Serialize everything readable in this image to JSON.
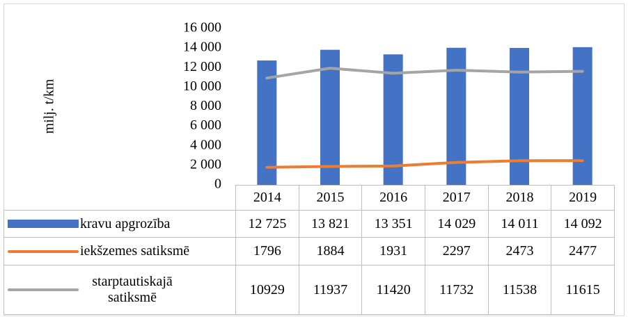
{
  "chart_data": {
    "type": "bar_line_table",
    "y_label": "milj. t/km",
    "categories": [
      "2014",
      "2015",
      "2016",
      "2017",
      "2018",
      "2019"
    ],
    "series": [
      {
        "name": "kravu apgrozība",
        "type": "bar",
        "color": "#4472c4",
        "values": [
          12725,
          13821,
          13351,
          14029,
          14011,
          14092
        ],
        "value_labels": [
          "12 725",
          "13 821",
          "13 351",
          "14 029",
          "14 011",
          "14 092"
        ]
      },
      {
        "name": "iekšzemes satiksmē",
        "type": "line",
        "color": "#ed7d31",
        "values": [
          1796,
          1884,
          1931,
          2297,
          2473,
          2477
        ]
      },
      {
        "name": "starptautiskajā satiksmē",
        "type": "line",
        "color": "#a5a5a5",
        "values": [
          10929,
          11937,
          11420,
          11732,
          11538,
          11615
        ]
      }
    ],
    "ylim": [
      0,
      16000
    ],
    "yticks": [
      0,
      {
        "value": 2000,
        "label": "2 000"
      },
      {
        "value": 4000,
        "label": "4 000"
      },
      {
        "value": 6000,
        "label": "6 000"
      },
      {
        "value": 8000,
        "label": "8 000"
      },
      {
        "value": 10000,
        "label": "10 000"
      },
      {
        "value": 12000,
        "label": "12 000"
      },
      {
        "value": 14000,
        "label": "14 000"
      },
      {
        "value": 16000,
        "label": "16 000"
      }
    ],
    "grid": false
  }
}
